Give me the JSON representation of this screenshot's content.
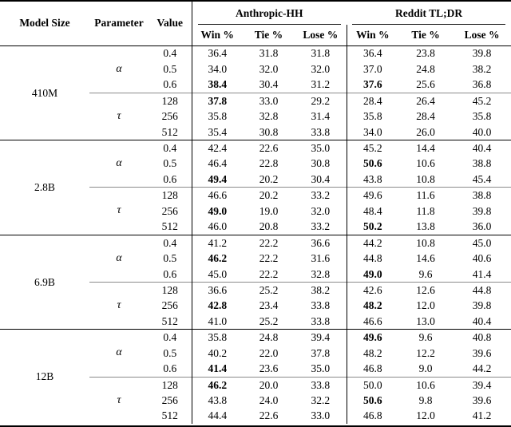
{
  "table": {
    "headers": {
      "model": "Model Size",
      "parameter": "Parameter",
      "value": "Value",
      "group_hh": "Anthropic-HH",
      "group_tldr": "Reddit TL;DR",
      "metrics": [
        "Win %",
        "Tie %",
        "Lose %"
      ]
    },
    "blocks": [
      {
        "model": "410M",
        "sections": [
          {
            "parameter": "α",
            "rows": [
              {
                "value": "0.4",
                "cells": [
                  "36.4",
                  "31.8",
                  "31.8",
                  "36.4",
                  "23.8",
                  "39.8"
                ],
                "bold": []
              },
              {
                "value": "0.5",
                "cells": [
                  "34.0",
                  "32.0",
                  "32.0",
                  "37.0",
                  "24.8",
                  "38.2"
                ],
                "bold": []
              },
              {
                "value": "0.6",
                "cells": [
                  "38.4",
                  "30.4",
                  "31.2",
                  "37.6",
                  "25.6",
                  "36.8"
                ],
                "bold": [
                  0,
                  3
                ]
              }
            ]
          },
          {
            "parameter": "τ",
            "rows": [
              {
                "value": "128",
                "cells": [
                  "37.8",
                  "33.0",
                  "29.2",
                  "28.4",
                  "26.4",
                  "45.2"
                ],
                "bold": [
                  0
                ]
              },
              {
                "value": "256",
                "cells": [
                  "35.8",
                  "32.8",
                  "31.4",
                  "35.8",
                  "28.4",
                  "35.8"
                ],
                "bold": []
              },
              {
                "value": "512",
                "cells": [
                  "35.4",
                  "30.8",
                  "33.8",
                  "34.0",
                  "26.0",
                  "40.0"
                ],
                "bold": []
              }
            ]
          }
        ]
      },
      {
        "model": "2.8B",
        "sections": [
          {
            "parameter": "α",
            "rows": [
              {
                "value": "0.4",
                "cells": [
                  "42.4",
                  "22.6",
                  "35.0",
                  "45.2",
                  "14.4",
                  "40.4"
                ],
                "bold": []
              },
              {
                "value": "0.5",
                "cells": [
                  "46.4",
                  "22.8",
                  "30.8",
                  "50.6",
                  "10.6",
                  "38.8"
                ],
                "bold": [
                  3
                ]
              },
              {
                "value": "0.6",
                "cells": [
                  "49.4",
                  "20.2",
                  "30.4",
                  "43.8",
                  "10.8",
                  "45.4"
                ],
                "bold": [
                  0
                ]
              }
            ]
          },
          {
            "parameter": "τ",
            "rows": [
              {
                "value": "128",
                "cells": [
                  "46.6",
                  "20.2",
                  "33.2",
                  "49.6",
                  "11.6",
                  "38.8"
                ],
                "bold": []
              },
              {
                "value": "256",
                "cells": [
                  "49.0",
                  "19.0",
                  "32.0",
                  "48.4",
                  "11.8",
                  "39.8"
                ],
                "bold": [
                  0
                ]
              },
              {
                "value": "512",
                "cells": [
                  "46.0",
                  "20.8",
                  "33.2",
                  "50.2",
                  "13.8",
                  "36.0"
                ],
                "bold": [
                  3
                ]
              }
            ]
          }
        ]
      },
      {
        "model": "6.9B",
        "sections": [
          {
            "parameter": "α",
            "rows": [
              {
                "value": "0.4",
                "cells": [
                  "41.2",
                  "22.2",
                  "36.6",
                  "44.2",
                  "10.8",
                  "45.0"
                ],
                "bold": []
              },
              {
                "value": "0.5",
                "cells": [
                  "46.2",
                  "22.2",
                  "31.6",
                  "44.8",
                  "14.6",
                  "40.6"
                ],
                "bold": [
                  0
                ]
              },
              {
                "value": "0.6",
                "cells": [
                  "45.0",
                  "22.2",
                  "32.8",
                  "49.0",
                  "9.6",
                  "41.4"
                ],
                "bold": [
                  3
                ]
              }
            ]
          },
          {
            "parameter": "τ",
            "rows": [
              {
                "value": "128",
                "cells": [
                  "36.6",
                  "25.2",
                  "38.2",
                  "42.6",
                  "12.6",
                  "44.8"
                ],
                "bold": []
              },
              {
                "value": "256",
                "cells": [
                  "42.8",
                  "23.4",
                  "33.8",
                  "48.2",
                  "12.0",
                  "39.8"
                ],
                "bold": [
                  0,
                  3
                ]
              },
              {
                "value": "512",
                "cells": [
                  "41.0",
                  "25.2",
                  "33.8",
                  "46.6",
                  "13.0",
                  "40.4"
                ],
                "bold": []
              }
            ]
          }
        ]
      },
      {
        "model": "12B",
        "sections": [
          {
            "parameter": "α",
            "rows": [
              {
                "value": "0.4",
                "cells": [
                  "35.8",
                  "24.8",
                  "39.4",
                  "49.6",
                  "9.6",
                  "40.8"
                ],
                "bold": [
                  3
                ]
              },
              {
                "value": "0.5",
                "cells": [
                  "40.2",
                  "22.0",
                  "37.8",
                  "48.2",
                  "12.2",
                  "39.6"
                ],
                "bold": []
              },
              {
                "value": "0.6",
                "cells": [
                  "41.4",
                  "23.6",
                  "35.0",
                  "46.8",
                  "9.0",
                  "44.2"
                ],
                "bold": [
                  0
                ]
              }
            ]
          },
          {
            "parameter": "τ",
            "rows": [
              {
                "value": "128",
                "cells": [
                  "46.2",
                  "20.0",
                  "33.8",
                  "50.0",
                  "10.6",
                  "39.4"
                ],
                "bold": [
                  0
                ]
              },
              {
                "value": "256",
                "cells": [
                  "43.8",
                  "24.0",
                  "32.2",
                  "50.6",
                  "9.8",
                  "39.6"
                ],
                "bold": [
                  3
                ]
              },
              {
                "value": "512",
                "cells": [
                  "44.4",
                  "22.6",
                  "33.0",
                  "46.8",
                  "12.0",
                  "41.2"
                ],
                "bold": []
              }
            ]
          }
        ]
      }
    ]
  }
}
